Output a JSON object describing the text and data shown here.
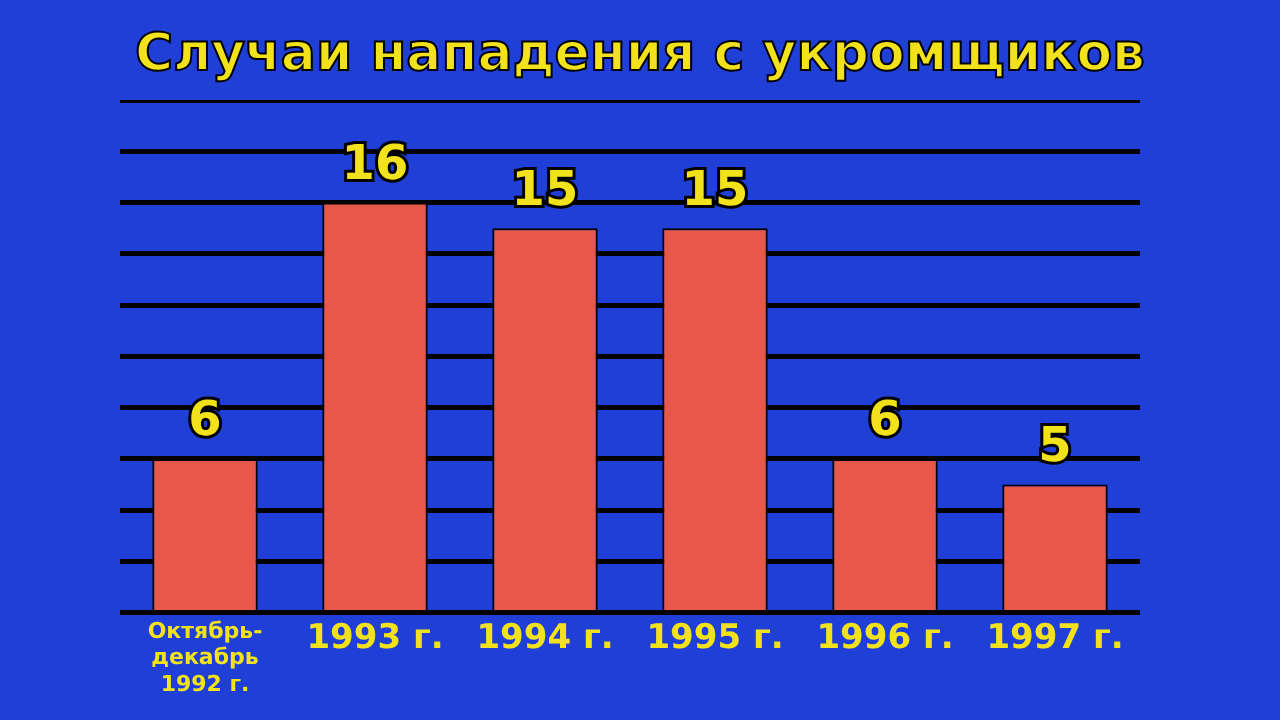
{
  "chart_data": {
    "type": "bar",
    "title": "Случаи нападения с укромщиков",
    "categories": [
      [
        "Октябрь-",
        "декабрь",
        "1992 г."
      ],
      "1993 г.",
      "1994 г.",
      "1995 г.",
      "1996 г.",
      "1997 г."
    ],
    "values": [
      6,
      16,
      15,
      15,
      6,
      5
    ],
    "color": "#e8584a",
    "grid": "y",
    "tick_labels": "x",
    "data_labels": true,
    "legend": false
  }
}
